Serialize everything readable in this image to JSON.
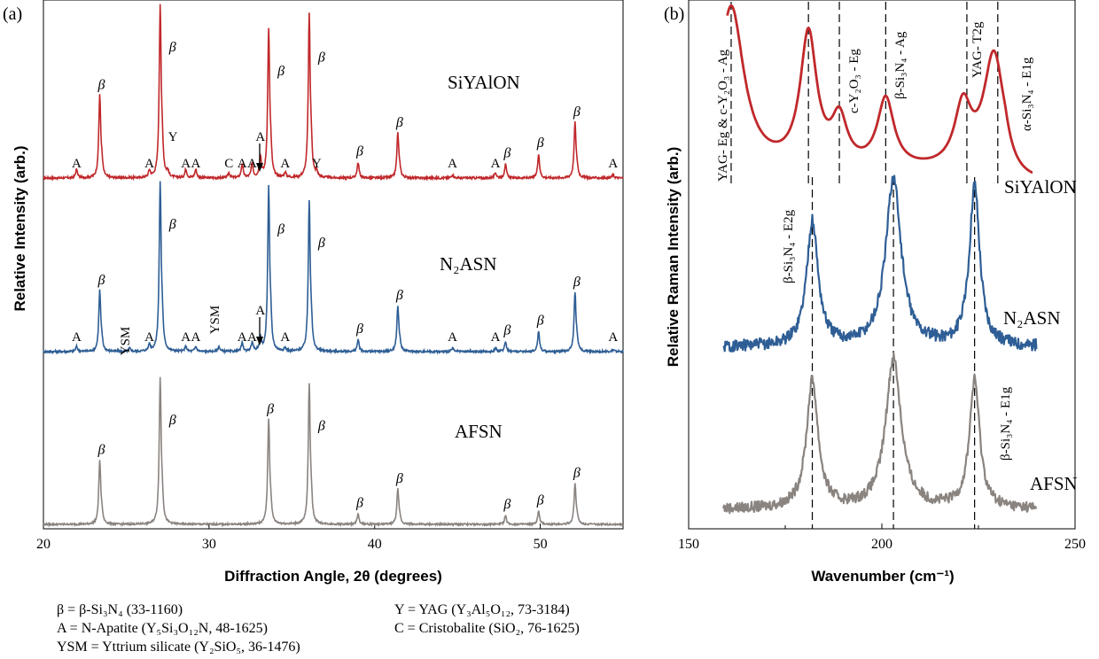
{
  "chart_data": [
    {
      "id": "a",
      "type": "line",
      "panel_label": "(a)",
      "title": "",
      "xlabel": "Diffraction Angle, 2θ (degrees)",
      "ylabel": "Relative Intensity (arb.)",
      "xlim": [
        20,
        55
      ],
      "xticks": [
        "20",
        "30",
        "40",
        "50"
      ],
      "series": [
        {
          "name": "SiYAlON",
          "color": "#c0282b",
          "peaks": [
            {
              "x": 22.0,
              "h": 0.05,
              "label": "A"
            },
            {
              "x": 23.4,
              "h": 0.48,
              "label": "β"
            },
            {
              "x": 26.4,
              "h": 0.04,
              "label": "A"
            },
            {
              "x": 27.05,
              "h": 1.0,
              "label": "β"
            },
            {
              "x": 27.5,
              "h": 0.03,
              "label": "Y"
            },
            {
              "x": 28.6,
              "h": 0.05,
              "label": "A"
            },
            {
              "x": 29.2,
              "h": 0.05,
              "label": "A"
            },
            {
              "x": 31.2,
              "h": 0.03,
              "label": "C"
            },
            {
              "x": 32.0,
              "h": 0.08,
              "label": "A"
            },
            {
              "x": 32.6,
              "h": 0.08,
              "label": "A"
            },
            {
              "x": 33.1,
              "h": 0.12,
              "label": "A"
            },
            {
              "x": 33.6,
              "h": 0.86,
              "label": "β"
            },
            {
              "x": 34.6,
              "h": 0.03,
              "label": "A"
            },
            {
              "x": 36.05,
              "h": 0.94,
              "label": "β"
            },
            {
              "x": 36.5,
              "h": 0.03,
              "label": "Y"
            },
            {
              "x": 39.0,
              "h": 0.09,
              "label": "β"
            },
            {
              "x": 41.4,
              "h": 0.26,
              "label": "β"
            },
            {
              "x": 44.7,
              "h": 0.02,
              "label": "A"
            },
            {
              "x": 47.3,
              "h": 0.03,
              "label": "A"
            },
            {
              "x": 47.9,
              "h": 0.08,
              "label": "β"
            },
            {
              "x": 49.9,
              "h": 0.14,
              "label": "β"
            },
            {
              "x": 52.1,
              "h": 0.32,
              "label": "β"
            },
            {
              "x": 54.4,
              "h": 0.02,
              "label": "A"
            }
          ]
        },
        {
          "name": "N₂ASN",
          "color": "#2e5e95",
          "peaks": [
            {
              "x": 22.0,
              "h": 0.03,
              "label": "A"
            },
            {
              "x": 23.4,
              "h": 0.36,
              "label": "β"
            },
            {
              "x": 25.2,
              "h": 0.02,
              "label": "YSM"
            },
            {
              "x": 26.4,
              "h": 0.04,
              "label": "A"
            },
            {
              "x": 27.05,
              "h": 1.0,
              "label": "β"
            },
            {
              "x": 28.6,
              "h": 0.03,
              "label": "A"
            },
            {
              "x": 29.2,
              "h": 0.03,
              "label": "A"
            },
            {
              "x": 30.6,
              "h": 0.03,
              "label": "YSM"
            },
            {
              "x": 32.0,
              "h": 0.05,
              "label": "A"
            },
            {
              "x": 32.6,
              "h": 0.05,
              "label": "A"
            },
            {
              "x": 33.1,
              "h": 0.08,
              "label": "A"
            },
            {
              "x": 33.6,
              "h": 0.97,
              "label": "β"
            },
            {
              "x": 34.6,
              "h": 0.02,
              "label": "A"
            },
            {
              "x": 36.05,
              "h": 0.89,
              "label": "β"
            },
            {
              "x": 39.0,
              "h": 0.07,
              "label": "β"
            },
            {
              "x": 41.4,
              "h": 0.27,
              "label": "β"
            },
            {
              "x": 44.7,
              "h": 0.02,
              "label": "A"
            },
            {
              "x": 47.3,
              "h": 0.02,
              "label": "A"
            },
            {
              "x": 47.9,
              "h": 0.06,
              "label": "β"
            },
            {
              "x": 49.9,
              "h": 0.12,
              "label": "β"
            },
            {
              "x": 52.1,
              "h": 0.35,
              "label": "β"
            },
            {
              "x": 54.4,
              "h": 0.01,
              "label": "A"
            }
          ]
        },
        {
          "name": "AFSN",
          "color": "#8a8480",
          "peaks": [
            {
              "x": 23.4,
              "h": 0.44,
              "label": "β"
            },
            {
              "x": 27.05,
              "h": 1.0,
              "label": "β"
            },
            {
              "x": 33.6,
              "h": 0.72,
              "label": "β"
            },
            {
              "x": 36.05,
              "h": 0.96,
              "label": "β"
            },
            {
              "x": 39.0,
              "h": 0.07,
              "label": "β"
            },
            {
              "x": 41.4,
              "h": 0.24,
              "label": "β"
            },
            {
              "x": 47.9,
              "h": 0.06,
              "label": "β"
            },
            {
              "x": 49.9,
              "h": 0.09,
              "label": "β"
            },
            {
              "x": 52.1,
              "h": 0.28,
              "label": "β"
            }
          ]
        }
      ],
      "legend": [
        {
          "text": "β = β-Si₃N₄ (33-1160)"
        },
        {
          "text": "A = N-Apatite (Y₅Si₃O₁₂N, 48-1625)"
        },
        {
          "text": "YSM = Yttrium silicate (Y₂SiO₅, 36-1476)"
        },
        {
          "text": "Y = YAG (Y₃Al₅O₁₂, 73-3184)"
        },
        {
          "text": "C = Cristobalite (SiO₂, 76-1625)"
        }
      ]
    },
    {
      "id": "b",
      "type": "line",
      "panel_label": "(b)",
      "title": "",
      "xlabel": "Wavenumber (cm⁻¹)",
      "ylabel": "Relative Raman Intensity (arb.)",
      "xlim": [
        150,
        250
      ],
      "xticks": [
        "150",
        "200",
        "250"
      ],
      "reference_lines": [
        161,
        181,
        189,
        201,
        222,
        230,
        182,
        203,
        224
      ],
      "annotations": [
        {
          "text": "YAG- Eg & c-Y₂O₃ - Ag"
        },
        {
          "text": "c-Y₂O₃ - Eg"
        },
        {
          "text": "β-Si₃N₄ - Ag"
        },
        {
          "text": "YAG- T2g"
        },
        {
          "text": "α-Si₃N₄ - E1g"
        },
        {
          "text": "β-Si₃N₄ - E2g"
        },
        {
          "text": "β-Si₃N₄ - E1g"
        }
      ],
      "series": [
        {
          "name": "SiYAlON",
          "color": "#c0282b",
          "peaks": [
            {
              "x": 161,
              "h": 1.0
            },
            {
              "x": 181,
              "h": 0.81
            },
            {
              "x": 189,
              "h": 0.28
            },
            {
              "x": 201,
              "h": 0.42
            },
            {
              "x": 221,
              "h": 0.37
            },
            {
              "x": 229,
              "h": 0.7
            }
          ]
        },
        {
          "name": "N₂ASN",
          "color": "#2e5e95",
          "peaks": [
            {
              "x": 182,
              "h": 0.74
            },
            {
              "x": 203,
              "h": 1.0
            },
            {
              "x": 224,
              "h": 0.96
            }
          ]
        },
        {
          "name": "AFSN",
          "color": "#8a8480",
          "peaks": [
            {
              "x": 182,
              "h": 0.85
            },
            {
              "x": 203,
              "h": 1.0
            },
            {
              "x": 224,
              "h": 0.85
            }
          ]
        }
      ]
    }
  ]
}
